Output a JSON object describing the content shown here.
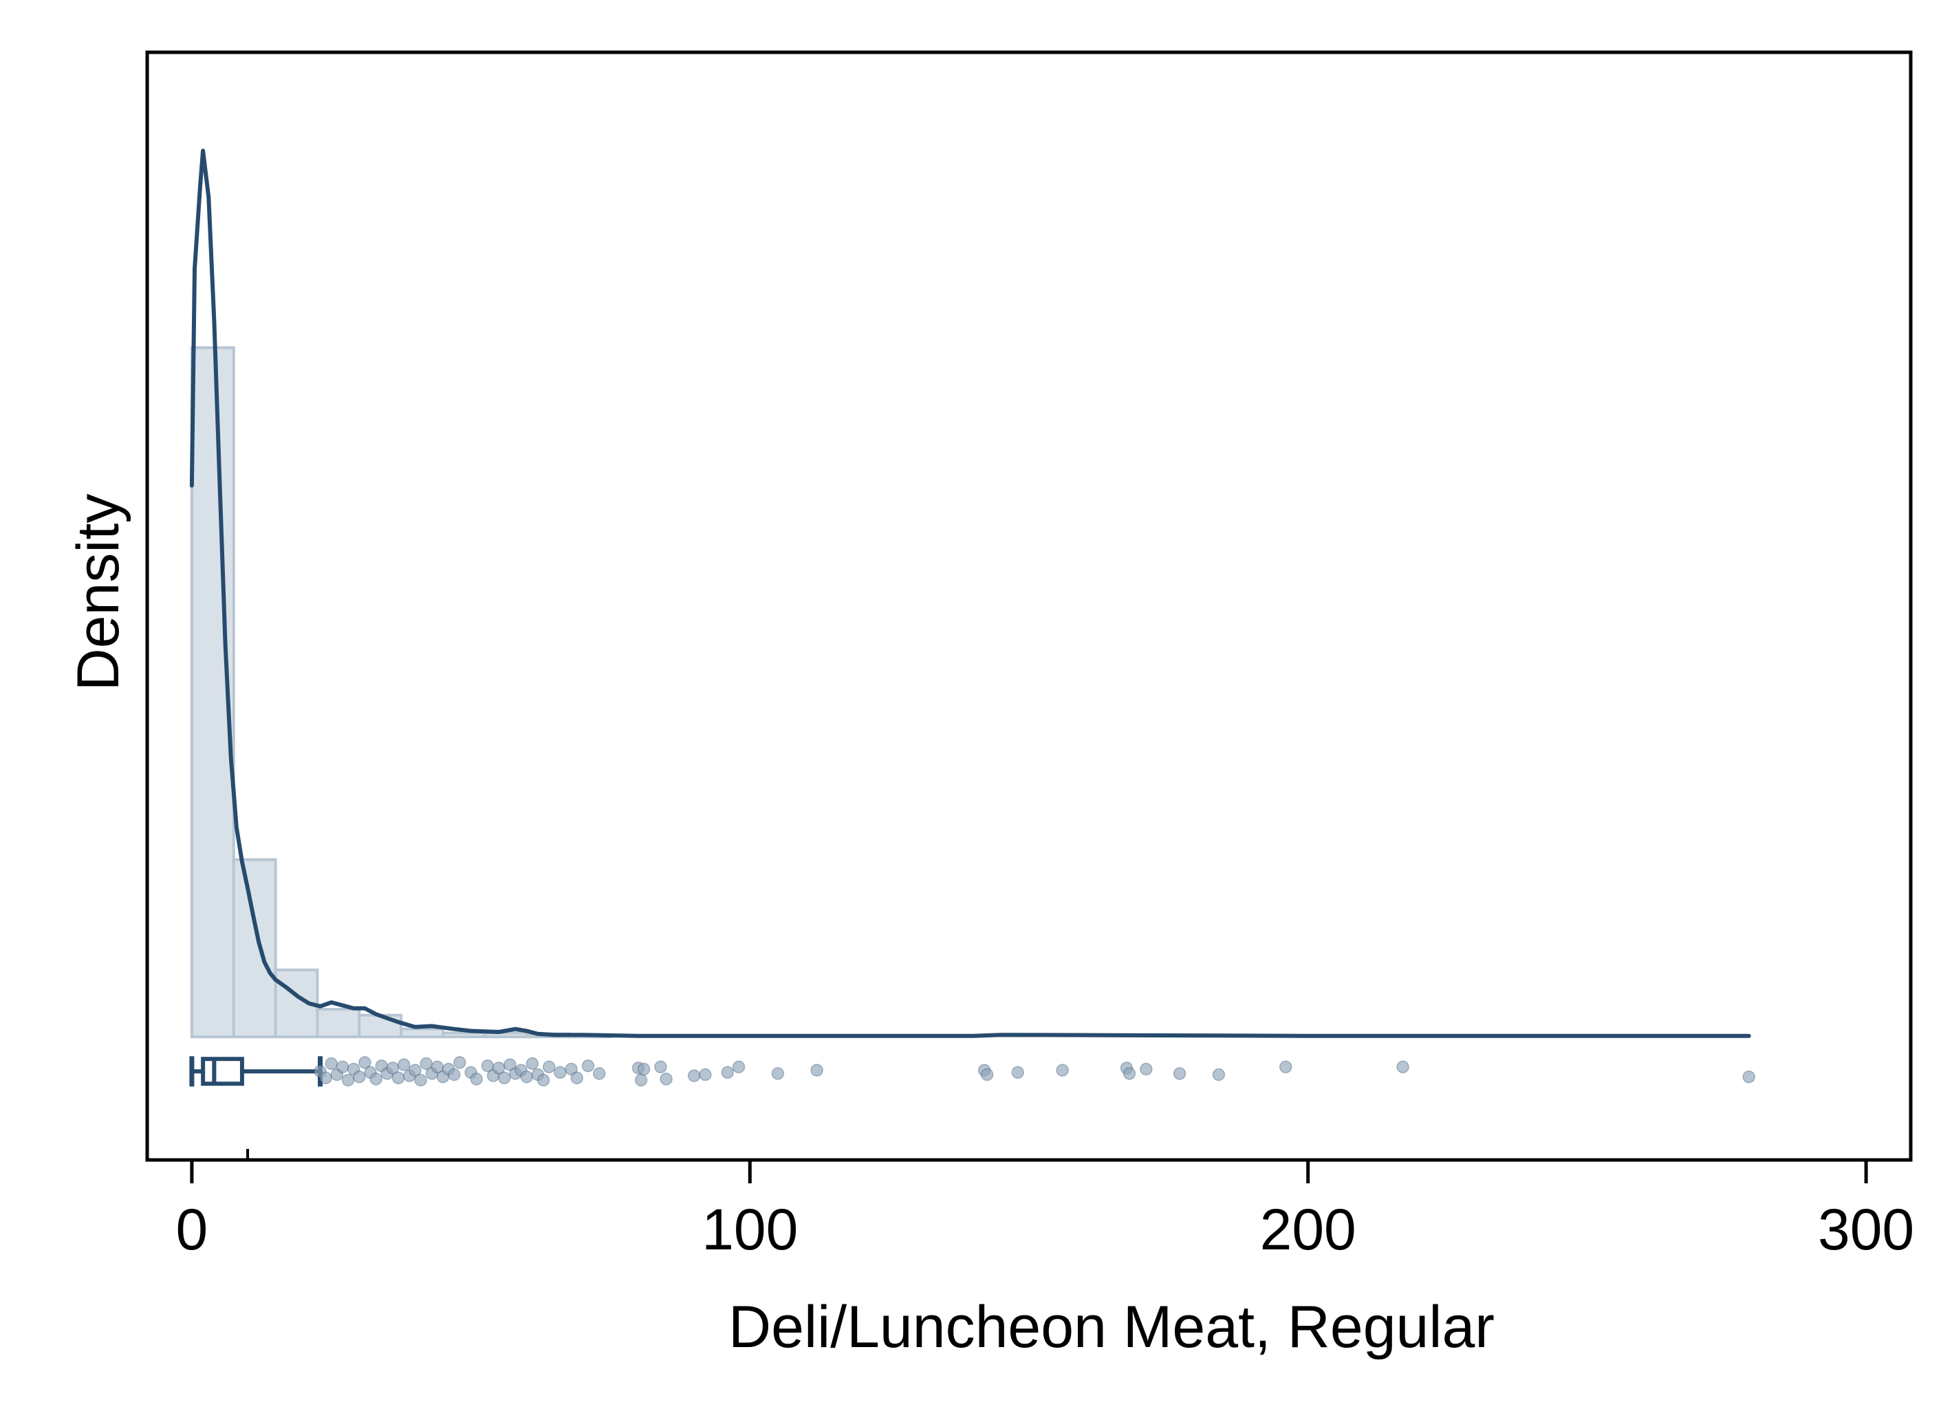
{
  "chart_data": {
    "type": "histogram",
    "xlabel": "Deli/Luncheon Meat, Regular",
    "ylabel": "Density",
    "xlim": [
      -8,
      308
    ],
    "ylim": [
      -0.0125,
      0.1
    ],
    "x_ticks": [
      0,
      100,
      200,
      300
    ],
    "y_ticks_shown": false,
    "grid": false,
    "legend": "none",
    "colors": {
      "line": "#274b6e",
      "bar_fill": "#d9e1e8",
      "bar_edge": "#b8c6d3",
      "points": "#8fa3b7"
    },
    "histogram": {
      "bins": [
        {
          "x0": 0,
          "x1": 7.5,
          "density": 0.07
        },
        {
          "x0": 7.5,
          "x1": 15,
          "density": 0.018
        },
        {
          "x0": 15,
          "x1": 22.5,
          "density": 0.0068
        },
        {
          "x0": 22.5,
          "x1": 30,
          "density": 0.0028
        },
        {
          "x0": 30,
          "x1": 37.5,
          "density": 0.0022
        },
        {
          "x0": 37.5,
          "x1": 45,
          "density": 0.0008
        },
        {
          "x0": 45,
          "x1": 52.5,
          "density": 0.0004
        },
        {
          "x0": 52.5,
          "x1": 60,
          "density": 0.0004
        },
        {
          "x0": 60,
          "x1": 67.5,
          "density": 0.0003
        },
        {
          "x0": 67.5,
          "x1": 75,
          "density": 0.0002
        }
      ]
    },
    "density_curve": {
      "x": [
        0,
        0.5,
        1.5,
        2,
        3,
        4,
        5,
        6,
        7,
        8,
        9,
        10,
        11,
        12,
        13,
        14,
        15,
        17,
        19,
        21,
        23,
        25,
        27,
        29,
        31,
        33,
        35,
        37,
        40,
        43,
        47,
        50,
        55,
        58,
        60,
        62,
        65,
        70,
        80,
        100,
        140,
        145,
        200,
        220,
        279
      ],
      "y": [
        0.056,
        0.078,
        0.0865,
        0.09,
        0.0853,
        0.0727,
        0.0561,
        0.0399,
        0.0284,
        0.0213,
        0.0178,
        0.0151,
        0.0123,
        0.0096,
        0.0076,
        0.0065,
        0.0058,
        0.005,
        0.0041,
        0.0034,
        0.0031,
        0.0035,
        0.0032,
        0.0029,
        0.0029,
        0.0023,
        0.0019,
        0.0015,
        0.001,
        0.0011,
        0.0008,
        0.0006,
        0.0005,
        0.0008,
        0.0006,
        0.0003,
        0.0002,
        0.0002,
        0.0001,
        0.0001,
        0.0001,
        0.0002,
        0.0001,
        0.0001,
        0.0001
      ]
    },
    "boxplot": {
      "min": 0,
      "q1": 2,
      "median": 4,
      "q3": 9,
      "whisker_high": 23
    },
    "outliers": [
      {
        "x": 23,
        "jitter": 0
      },
      {
        "x": 24,
        "jitter": 0.6
      },
      {
        "x": 25,
        "jitter": -0.7
      },
      {
        "x": 26,
        "jitter": 0.3
      },
      {
        "x": 27,
        "jitter": -0.4
      },
      {
        "x": 28,
        "jitter": 0.8
      },
      {
        "x": 29,
        "jitter": -0.2
      },
      {
        "x": 30,
        "jitter": 0.5
      },
      {
        "x": 31,
        "jitter": -0.8
      },
      {
        "x": 32,
        "jitter": 0.1
      },
      {
        "x": 33,
        "jitter": 0.7
      },
      {
        "x": 34,
        "jitter": -0.5
      },
      {
        "x": 35,
        "jitter": 0.2
      },
      {
        "x": 36,
        "jitter": -0.3
      },
      {
        "x": 37,
        "jitter": 0.6
      },
      {
        "x": 38,
        "jitter": -0.6
      },
      {
        "x": 39,
        "jitter": 0.4
      },
      {
        "x": 40,
        "jitter": -0.1
      },
      {
        "x": 41,
        "jitter": 0.8
      },
      {
        "x": 42,
        "jitter": -0.7
      },
      {
        "x": 43,
        "jitter": 0.2
      },
      {
        "x": 44,
        "jitter": -0.4
      },
      {
        "x": 45,
        "jitter": 0.5
      },
      {
        "x": 46,
        "jitter": -0.2
      },
      {
        "x": 47,
        "jitter": 0.3
      },
      {
        "x": 48,
        "jitter": -0.8
      },
      {
        "x": 50,
        "jitter": 0.1
      },
      {
        "x": 51,
        "jitter": 0.7
      },
      {
        "x": 53,
        "jitter": -0.5
      },
      {
        "x": 54,
        "jitter": 0.4
      },
      {
        "x": 55,
        "jitter": -0.3
      },
      {
        "x": 56,
        "jitter": 0.6
      },
      {
        "x": 57,
        "jitter": -0.6
      },
      {
        "x": 58,
        "jitter": 0.2
      },
      {
        "x": 59,
        "jitter": -0.1
      },
      {
        "x": 60,
        "jitter": 0.5
      },
      {
        "x": 61,
        "jitter": -0.7
      },
      {
        "x": 62,
        "jitter": 0.3
      },
      {
        "x": 63,
        "jitter": 0.8
      },
      {
        "x": 64,
        "jitter": -0.4
      },
      {
        "x": 66,
        "jitter": 0.1
      },
      {
        "x": 68,
        "jitter": -0.2
      },
      {
        "x": 69,
        "jitter": 0.6
      },
      {
        "x": 71,
        "jitter": -0.5
      },
      {
        "x": 73,
        "jitter": 0.2
      },
      {
        "x": 80,
        "jitter": -0.3
      },
      {
        "x": 80.5,
        "jitter": 0.8
      },
      {
        "x": 81,
        "jitter": -0.2
      },
      {
        "x": 84,
        "jitter": -0.4
      },
      {
        "x": 85,
        "jitter": 0.7
      },
      {
        "x": 90,
        "jitter": 0.4
      },
      {
        "x": 92,
        "jitter": 0.3
      },
      {
        "x": 96,
        "jitter": 0.1
      },
      {
        "x": 98,
        "jitter": -0.4
      },
      {
        "x": 105,
        "jitter": 0.2
      },
      {
        "x": 112,
        "jitter": -0.1
      },
      {
        "x": 142,
        "jitter": -0.1
      },
      {
        "x": 142.5,
        "jitter": 0.3
      },
      {
        "x": 148,
        "jitter": 0.1
      },
      {
        "x": 156,
        "jitter": -0.1
      },
      {
        "x": 167.5,
        "jitter": -0.3
      },
      {
        "x": 168,
        "jitter": 0.2
      },
      {
        "x": 171,
        "jitter": -0.2
      },
      {
        "x": 177,
        "jitter": 0.2
      },
      {
        "x": 184,
        "jitter": 0.3
      },
      {
        "x": 196,
        "jitter": -0.4
      },
      {
        "x": 217,
        "jitter": -0.4
      },
      {
        "x": 279,
        "jitter": 0.5
      }
    ]
  }
}
